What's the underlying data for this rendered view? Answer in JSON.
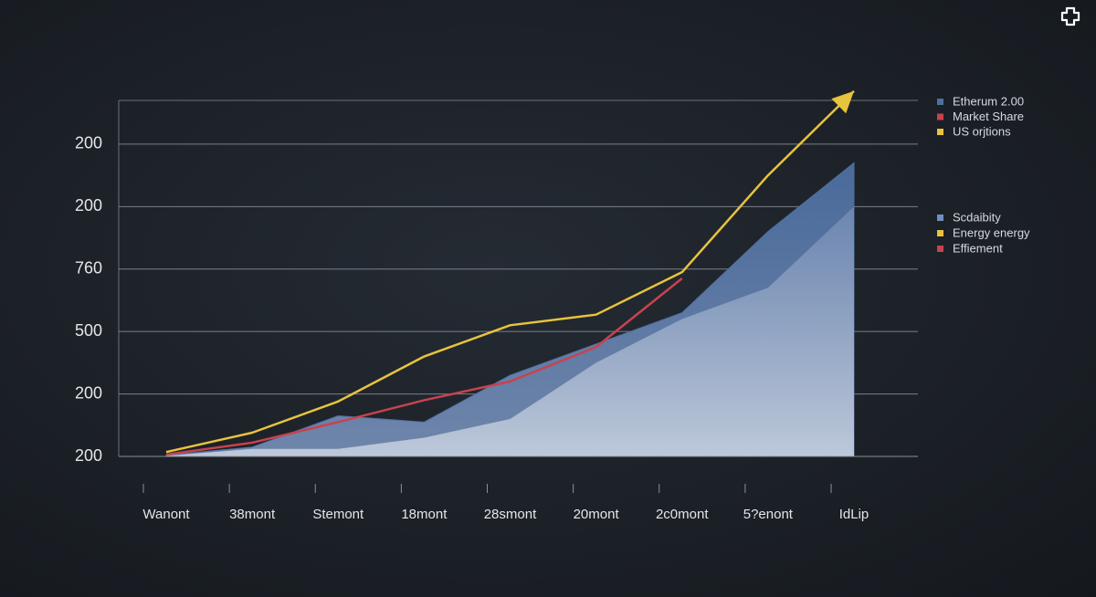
{
  "chart_data": {
    "type": "line",
    "categories": [
      "Wanont",
      "38mont",
      "Stemont",
      "18mont",
      "28smont",
      "20mont",
      "2c0mont",
      "5?enont",
      "IdLip"
    ],
    "series": [
      {
        "name": "Etherum 2.00",
        "color": "#4f6f9f",
        "kind": "area",
        "values": [
          0.02,
          0.15,
          0.65,
          0.55,
          1.3,
          1.8,
          2.3,
          3.6,
          4.7
        ]
      },
      {
        "name": "Market Share",
        "color": "#c8424f",
        "kind": "line",
        "values": [
          0.03,
          0.22,
          0.55,
          0.9,
          1.2,
          1.75,
          2.85,
          null,
          null
        ]
      },
      {
        "name": "US orjtions",
        "color": "#e8c33e",
        "kind": "line",
        "values": [
          0.07,
          0.38,
          0.88,
          1.6,
          2.1,
          2.27,
          2.95,
          4.5,
          5.85
        ]
      }
    ],
    "band": {
      "color": "#9fb2cf",
      "values": [
        0.01,
        0.12,
        0.12,
        0.3,
        0.6,
        1.5,
        2.2,
        2.7,
        4.0
      ]
    },
    "legend2": [
      {
        "name": "Scdaibity",
        "color": "#6f8fbf"
      },
      {
        "name": "Energy energy",
        "color": "#e8c33e"
      },
      {
        "name": "Effiement",
        "color": "#c8424f"
      }
    ],
    "ylim": [
      0,
      5.7
    ],
    "yticks": [
      {
        "value": 0,
        "label": "200"
      },
      {
        "value": 1,
        "label": "200"
      },
      {
        "value": 2,
        "label": "500"
      },
      {
        "value": 3,
        "label": "760"
      },
      {
        "value": 4,
        "label": "200"
      },
      {
        "value": 5,
        "label": "200"
      }
    ],
    "grid": true
  }
}
